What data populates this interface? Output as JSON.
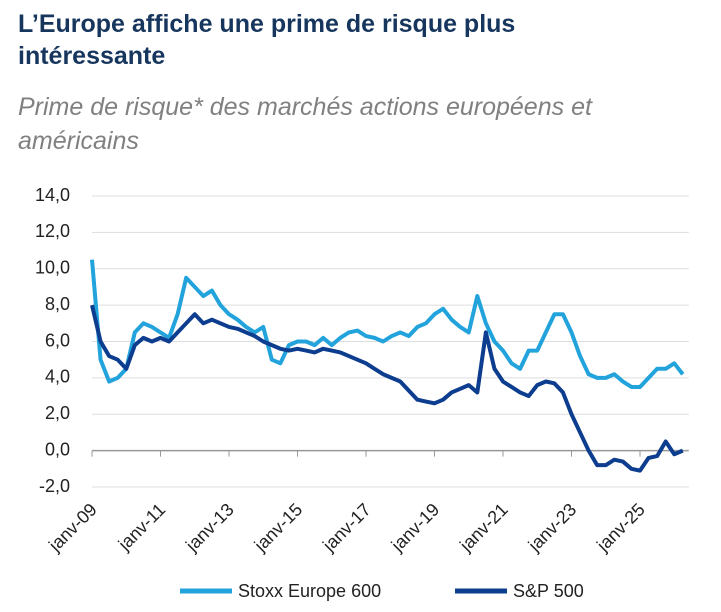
{
  "chart_data": {
    "type": "line",
    "title": "L’Europe affiche une prime de risque plus intéressante",
    "subtitle": "Prime de risque* des marchés actions européens et américains",
    "categories": [
      "janv-09",
      null,
      null,
      null,
      null,
      null,
      null,
      null,
      "janv-11",
      null,
      null,
      null,
      null,
      null,
      null,
      null,
      "janv-13",
      null,
      null,
      null,
      null,
      null,
      null,
      null,
      "janv-15",
      null,
      null,
      null,
      null,
      null,
      null,
      null,
      "janv-17",
      null,
      null,
      null,
      null,
      null,
      null,
      null,
      "janv-19",
      null,
      null,
      null,
      null,
      null,
      null,
      null,
      "janv-21",
      null,
      null,
      null,
      null,
      null,
      null,
      null,
      "janv-23",
      null,
      null,
      null,
      null,
      null,
      null,
      null,
      "janv-25",
      null,
      null,
      null,
      null,
      null
    ],
    "series": [
      {
        "name": "Stoxx Europe 600",
        "color": "#22a3dc",
        "values": [
          10.5,
          5.0,
          3.8,
          4.0,
          4.5,
          6.5,
          7.0,
          6.8,
          6.5,
          6.2,
          7.5,
          9.5,
          9.0,
          8.5,
          8.8,
          8.0,
          7.5,
          7.2,
          6.8,
          6.5,
          6.8,
          5.0,
          4.8,
          5.8,
          6.0,
          6.0,
          5.8,
          6.2,
          5.8,
          6.2,
          6.5,
          6.6,
          6.3,
          6.2,
          6.0,
          6.3,
          6.5,
          6.3,
          6.8,
          7.0,
          7.5,
          7.8,
          7.2,
          6.8,
          6.5,
          8.5,
          7.0,
          6.0,
          5.5,
          4.8,
          4.5,
          5.5,
          5.5,
          6.5,
          7.5,
          7.5,
          6.5,
          5.2,
          4.2,
          4.0,
          4.0,
          4.2,
          3.8,
          3.5,
          3.5,
          4.0,
          4.5,
          4.5,
          4.8,
          4.2
        ]
      },
      {
        "name": "S&P 500",
        "color": "#0d3d8e",
        "values": [
          8.0,
          6.0,
          5.2,
          5.0,
          4.5,
          5.8,
          6.2,
          6.0,
          6.2,
          6.0,
          6.5,
          7.0,
          7.5,
          7.0,
          7.2,
          7.0,
          6.8,
          6.7,
          6.5,
          6.3,
          6.0,
          5.8,
          5.6,
          5.5,
          5.6,
          5.5,
          5.4,
          5.6,
          5.5,
          5.4,
          5.2,
          5.0,
          4.8,
          4.5,
          4.2,
          4.0,
          3.8,
          3.3,
          2.8,
          2.7,
          2.6,
          2.8,
          3.2,
          3.4,
          3.6,
          3.2,
          6.5,
          4.5,
          3.8,
          3.5,
          3.2,
          3.0,
          3.6,
          3.8,
          3.7,
          3.2,
          2.0,
          1.0,
          0.0,
          -0.8,
          -0.8,
          -0.5,
          -0.6,
          -1.0,
          -1.1,
          -0.4,
          -0.3,
          0.5,
          -0.2,
          0.0
        ]
      }
    ],
    "ylim": [
      -2,
      14
    ],
    "yticks": [
      {
        "value": -2,
        "label": "-2,0"
      },
      {
        "value": 0,
        "label": "0,0"
      },
      {
        "value": 2,
        "label": "2,0"
      },
      {
        "value": 4,
        "label": "4,0"
      },
      {
        "value": 6,
        "label": "6,0"
      },
      {
        "value": 8,
        "label": "8,0"
      },
      {
        "value": 10,
        "label": "10,0"
      },
      {
        "value": 12,
        "label": "12,0"
      },
      {
        "value": 14,
        "label": "14,0"
      }
    ],
    "grid": true
  }
}
